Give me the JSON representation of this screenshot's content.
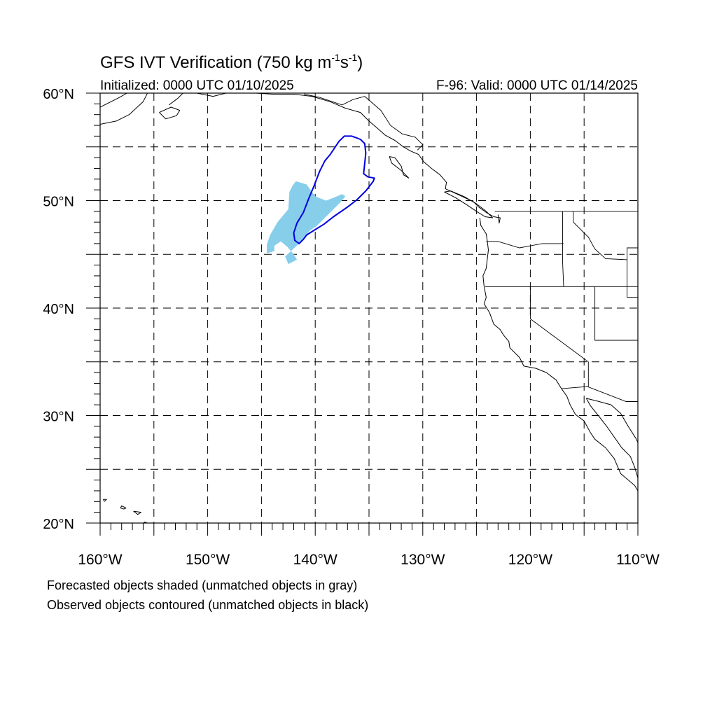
{
  "title": {
    "main_prefix": "GFS IVT Verification (750 kg m",
    "exp1": "-1",
    "mid": "s",
    "exp2": "-1",
    "suffix": ")"
  },
  "subtitle_left": "Initialized: 0000 UTC 01/10/2025",
  "subtitle_right": "F-96: Valid: 0000 UTC 01/14/2025",
  "footnotes": [
    "Forecasted objects shaded (unmatched objects in gray)",
    "Observed objects contoured (unmatched objects in black)"
  ],
  "colors": {
    "forecast_fill": "#87ceeb",
    "observed_contour": "#0000dd",
    "coastline": "#000000",
    "grid": "#000000"
  },
  "map": {
    "extent": {
      "lon_min": -160,
      "lon_max": -110,
      "lat_min": 20,
      "lat_max": 60
    },
    "grid_step_deg": 5,
    "lat_labels": [
      {
        "lat": 60,
        "text": "60°N"
      },
      {
        "lat": 50,
        "text": "50°N"
      },
      {
        "lat": 40,
        "text": "40°N"
      },
      {
        "lat": 30,
        "text": "30°N"
      },
      {
        "lat": 20,
        "text": "20°N"
      }
    ],
    "lon_labels": [
      {
        "lon": -160,
        "text": "160°W"
      },
      {
        "lon": -150,
        "text": "150°W"
      },
      {
        "lon": -140,
        "text": "140°W"
      },
      {
        "lon": -130,
        "text": "130°W"
      },
      {
        "lon": -120,
        "text": "120°W"
      },
      {
        "lon": -110,
        "text": "110°W"
      }
    ],
    "forecast_object": [
      [
        -144.5,
        45.1
      ],
      [
        -143.8,
        45.3
      ],
      [
        -143.8,
        45.8
      ],
      [
        -143.2,
        46.2
      ],
      [
        -142.6,
        45.7
      ],
      [
        -142.0,
        45.0
      ],
      [
        -141.7,
        44.5
      ],
      [
        -142.5,
        44.1
      ],
      [
        -142.8,
        44.8
      ],
      [
        -141.5,
        46.0
      ],
      [
        -140.5,
        47.2
      ],
      [
        -139.8,
        47.7
      ],
      [
        -139.0,
        48.5
      ],
      [
        -138.2,
        49.3
      ],
      [
        -137.7,
        49.8
      ],
      [
        -137.2,
        50.4
      ],
      [
        -137.5,
        50.6
      ],
      [
        -138.2,
        50.3
      ],
      [
        -139.0,
        50.0
      ],
      [
        -140.0,
        50.4
      ],
      [
        -140.8,
        51.5
      ],
      [
        -141.8,
        51.8
      ],
      [
        -142.1,
        51.4
      ],
      [
        -142.4,
        50.8
      ],
      [
        -142.5,
        49.2
      ],
      [
        -143.5,
        48.0
      ],
      [
        -144.2,
        46.8
      ],
      [
        -144.5,
        45.9
      ]
    ],
    "observed_object": [
      [
        -141.5,
        46.0
      ],
      [
        -141.1,
        46.4
      ],
      [
        -140.8,
        46.8
      ],
      [
        -140.0,
        47.3
      ],
      [
        -139.2,
        47.8
      ],
      [
        -138.3,
        48.5
      ],
      [
        -137.0,
        49.4
      ],
      [
        -136.1,
        50.1
      ],
      [
        -135.3,
        50.9
      ],
      [
        -134.6,
        51.8
      ],
      [
        -134.5,
        52.1
      ],
      [
        -135.1,
        52.2
      ],
      [
        -135.5,
        52.5
      ],
      [
        -135.3,
        54.4
      ],
      [
        -135.4,
        55.3
      ],
      [
        -135.8,
        55.7
      ],
      [
        -136.6,
        56.0
      ],
      [
        -137.3,
        56.0
      ],
      [
        -137.8,
        55.5
      ],
      [
        -138.6,
        54.3
      ],
      [
        -139.1,
        53.7
      ],
      [
        -139.6,
        52.7
      ],
      [
        -140.1,
        51.4
      ],
      [
        -140.6,
        50.2
      ],
      [
        -141.1,
        48.9
      ],
      [
        -141.7,
        47.9
      ],
      [
        -142.0,
        47.0
      ],
      [
        -141.9,
        46.3
      ]
    ],
    "coastlines": [
      [
        [
          -160,
          57.1
        ],
        [
          -158.5,
          57.4
        ],
        [
          -157.3,
          58.0
        ],
        [
          -156.0,
          59.2
        ],
        [
          -155.6,
          60.0
        ]
      ],
      [
        [
          -160,
          58.7
        ],
        [
          -159.0,
          59.2
        ],
        [
          -158.2,
          59.6
        ],
        [
          -157.5,
          60.0
        ]
      ],
      [
        [
          -153.6,
          58.9
        ],
        [
          -152.8,
          59.5
        ],
        [
          -152.3,
          60.0
        ]
      ],
      [
        [
          -154.5,
          58.2
        ],
        [
          -153.4,
          58.7
        ],
        [
          -152.6,
          58.4
        ],
        [
          -152.9,
          57.9
        ],
        [
          -153.9,
          57.6
        ],
        [
          -154.5,
          58.2
        ]
      ],
      [
        [
          -151.0,
          60.0
        ],
        [
          -149.5,
          59.7
        ],
        [
          -148.3,
          60.0
        ]
      ],
      [
        [
          -145.5,
          60.0
        ],
        [
          -144.0,
          59.9
        ],
        [
          -142.0,
          59.9
        ],
        [
          -140.3,
          59.7
        ],
        [
          -138.6,
          59.2
        ],
        [
          -137.2,
          58.6
        ],
        [
          -135.8,
          58.2
        ],
        [
          -135.0,
          57.4
        ],
        [
          -134.3,
          56.8
        ],
        [
          -133.5,
          56.1
        ],
        [
          -132.6,
          55.6
        ],
        [
          -131.8,
          55.0
        ],
        [
          -131.1,
          54.6
        ],
        [
          -130.4,
          54.3
        ],
        [
          -129.9,
          53.6
        ],
        [
          -129.2,
          53.0
        ],
        [
          -128.4,
          52.4
        ],
        [
          -127.8,
          51.7
        ],
        [
          -127.9,
          51.1
        ],
        [
          -126.8,
          50.6
        ],
        [
          -125.3,
          49.9
        ],
        [
          -124.8,
          49.4
        ],
        [
          -124.1,
          48.9
        ],
        [
          -123.4,
          48.5
        ],
        [
          -122.8,
          48.4
        ],
        [
          -122.9,
          47.9
        ],
        [
          -123.0,
          48.7
        ]
      ],
      [
        [
          -132.6,
          54.0
        ],
        [
          -132.0,
          53.2
        ],
        [
          -131.8,
          52.4
        ],
        [
          -131.3,
          52.1
        ],
        [
          -132.0,
          52.8
        ],
        [
          -132.9,
          53.5
        ],
        [
          -133.1,
          54.1
        ],
        [
          -132.6,
          54.0
        ]
      ],
      [
        [
          -128.0,
          50.8
        ],
        [
          -127.0,
          50.3
        ],
        [
          -125.9,
          49.6
        ],
        [
          -125.0,
          49.0
        ],
        [
          -124.2,
          48.5
        ],
        [
          -123.5,
          48.4
        ],
        [
          -124.1,
          49.0
        ],
        [
          -125.0,
          49.7
        ],
        [
          -126.2,
          50.4
        ],
        [
          -127.4,
          50.9
        ],
        [
          -128.0,
          50.8
        ]
      ],
      [
        [
          -124.7,
          48.4
        ],
        [
          -124.6,
          47.7
        ],
        [
          -124.1,
          46.9
        ],
        [
          -124.0,
          46.2
        ],
        [
          -123.9,
          45.4
        ],
        [
          -124.0,
          44.6
        ],
        [
          -124.1,
          43.7
        ],
        [
          -124.4,
          43.0
        ],
        [
          -124.3,
          42.0
        ],
        [
          -124.1,
          41.0
        ],
        [
          -124.3,
          40.4
        ],
        [
          -123.8,
          39.6
        ],
        [
          -123.4,
          38.5
        ],
        [
          -122.8,
          38.0
        ],
        [
          -122.5,
          37.5
        ],
        [
          -122.0,
          36.9
        ],
        [
          -121.9,
          36.3
        ],
        [
          -121.0,
          35.4
        ],
        [
          -120.6,
          34.6
        ],
        [
          -119.5,
          34.4
        ],
        [
          -118.5,
          34.0
        ],
        [
          -117.6,
          33.3
        ],
        [
          -117.1,
          32.5
        ],
        [
          -116.6,
          31.8
        ],
        [
          -116.3,
          31.0
        ],
        [
          -115.8,
          30.1
        ],
        [
          -115.0,
          29.5
        ],
        [
          -114.4,
          28.4
        ],
        [
          -114.0,
          27.8
        ],
        [
          -113.0,
          27.0
        ],
        [
          -112.2,
          26.0
        ],
        [
          -111.6,
          24.6
        ],
        [
          -110.3,
          23.5
        ],
        [
          -110.0,
          23.0
        ]
      ],
      [
        [
          -114.8,
          31.6
        ],
        [
          -114.4,
          30.9
        ],
        [
          -113.6,
          29.9
        ],
        [
          -112.9,
          29.0
        ],
        [
          -112.2,
          28.0
        ],
        [
          -111.5,
          27.0
        ],
        [
          -110.7,
          26.2
        ],
        [
          -110.3,
          25.2
        ],
        [
          -110.0,
          24.2
        ]
      ],
      [
        [
          -114.8,
          31.6
        ],
        [
          -113.6,
          31.3
        ],
        [
          -112.5,
          31.0
        ],
        [
          -111.6,
          30.2
        ],
        [
          -110.9,
          29.0
        ],
        [
          -110.2,
          27.9
        ],
        [
          -110.0,
          27.5
        ]
      ],
      [
        [
          -159.6,
          22.0
        ],
        [
          -159.4,
          22.2
        ],
        [
          -159.7,
          22.2
        ],
        [
          -159.6,
          22.0
        ]
      ],
      [
        [
          -157.8,
          21.3
        ],
        [
          -157.6,
          21.4
        ],
        [
          -158.0,
          21.6
        ],
        [
          -158.1,
          21.4
        ],
        [
          -157.8,
          21.3
        ]
      ],
      [
        [
          -156.9,
          21.1
        ],
        [
          -156.2,
          21.0
        ],
        [
          -156.5,
          20.8
        ],
        [
          -156.9,
          21.1
        ]
      ],
      [
        [
          -155.9,
          20.1
        ],
        [
          -155.0,
          19.8
        ],
        [
          -155.1,
          19.2
        ],
        [
          -155.9,
          19.5
        ],
        [
          -155.9,
          20.1
        ]
      ]
    ],
    "borders": [
      [
        [
          -141.0,
          60.0
        ],
        [
          -141.0,
          59.9
        ],
        [
          -139.6,
          59.6
        ],
        [
          -137.5,
          58.9
        ],
        [
          -136.5,
          59.4
        ],
        [
          -135.4,
          59.7
        ],
        [
          -133.9,
          58.4
        ],
        [
          -133.0,
          57.0
        ],
        [
          -131.9,
          56.2
        ],
        [
          -130.7,
          55.9
        ],
        [
          -130.0,
          55.2
        ],
        [
          -130.5,
          54.7
        ]
      ],
      [
        [
          -123.3,
          49.0
        ],
        [
          -110.0,
          49.0
        ]
      ],
      [
        [
          -124.1,
          46.2
        ],
        [
          -123.0,
          46.2
        ],
        [
          -121.0,
          45.6
        ],
        [
          -118.9,
          46.0
        ],
        [
          -116.9,
          46.0
        ]
      ],
      [
        [
          -117.0,
          49.0
        ],
        [
          -117.0,
          44.3
        ],
        [
          -116.9,
          42.0
        ]
      ],
      [
        [
          -124.2,
          42.0
        ],
        [
          -110.0,
          42.0
        ]
      ],
      [
        [
          -120.0,
          42.0
        ],
        [
          -120.0,
          39.0
        ],
        [
          -114.6,
          35.0
        ],
        [
          -114.6,
          32.7
        ]
      ],
      [
        [
          -117.1,
          32.5
        ],
        [
          -114.7,
          32.7
        ],
        [
          -111.1,
          31.3
        ],
        [
          -110.0,
          31.3
        ]
      ],
      [
        [
          -114.0,
          42.0
        ],
        [
          -114.0,
          37.0
        ],
        [
          -110.0,
          37.0
        ]
      ],
      [
        [
          -110.0,
          45.6
        ],
        [
          -111.0,
          45.6
        ],
        [
          -111.0,
          41.0
        ],
        [
          -110.0,
          41.0
        ]
      ],
      [
        [
          -116.0,
          49.0
        ],
        [
          -116.0,
          48.0
        ],
        [
          -115.5,
          47.5
        ],
        [
          -114.6,
          46.6
        ],
        [
          -114.0,
          45.5
        ],
        [
          -113.0,
          44.6
        ],
        [
          -111.0,
          44.5
        ]
      ]
    ]
  }
}
